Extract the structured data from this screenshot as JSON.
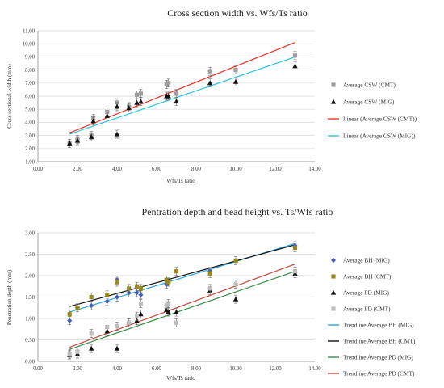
{
  "chart_data": [
    {
      "type": "scatter",
      "title": "Cross section width vs. Wfs/Ts ratio",
      "xlabel": "Wfs/Ts ratio",
      "ylabel": "Cross sectional width (mm)",
      "xlim": [
        0,
        14
      ],
      "ylim": [
        1,
        11
      ],
      "xticks": [
        "0.00",
        "2.00",
        "4.00",
        "6.00",
        "8.00",
        "10.00",
        "12.00",
        "14.00"
      ],
      "yticks": [
        "1.00",
        "2.00",
        "3.00",
        "4.00",
        "5.00",
        "6.00",
        "7.00",
        "8.00",
        "9.00",
        "10.00",
        "11.00"
      ],
      "grid": "horizontal",
      "legend_position": "right",
      "series": [
        {
          "name": "Average CSW (CMT)",
          "marker": "square",
          "color": "#9e9e9e",
          "x": [
            1.6,
            2.0,
            2.7,
            2.8,
            3.5,
            4.0,
            4.6,
            5.0,
            5.2,
            6.5,
            6.6,
            7.0,
            8.7,
            10.0,
            13.0
          ],
          "y": [
            2.4,
            2.7,
            3.0,
            4.3,
            4.8,
            5.5,
            5.2,
            6.1,
            6.2,
            6.9,
            7.0,
            6.2,
            7.9,
            8.0,
            9.1
          ]
        },
        {
          "name": "Average CSW (MIG)",
          "marker": "triangle",
          "color": "#111111",
          "x": [
            1.6,
            2.0,
            2.7,
            2.8,
            3.5,
            4.0,
            4.0,
            4.6,
            5.0,
            5.2,
            6.5,
            6.6,
            7.0,
            8.7,
            10.0,
            13.0
          ],
          "y": [
            2.4,
            2.6,
            2.9,
            4.1,
            4.5,
            3.1,
            5.2,
            5.1,
            5.5,
            5.6,
            6.0,
            6.0,
            5.6,
            7.0,
            7.1,
            8.3
          ]
        },
        {
          "name": "Linear (Average CSW (CMT))",
          "type": "line",
          "color": "#e8322e",
          "x": [
            1.6,
            13.0
          ],
          "y": [
            3.2,
            10.1
          ]
        },
        {
          "name": "Linear (Average CSW (MIG))",
          "type": "line",
          "color": "#2ec4dc",
          "x": [
            1.6,
            13.0
          ],
          "y": [
            3.1,
            9.0
          ]
        }
      ]
    },
    {
      "type": "scatter",
      "title": "Pentration depth and bead height vs. Ts/Wfs ratio",
      "xlabel": "Wfs/Ts ratio",
      "ylabel": "Penetration depth (mm)",
      "xlim": [
        0,
        14
      ],
      "ylim": [
        0,
        3
      ],
      "xticks": [
        "0.00",
        "2.00",
        "4.00",
        "6.00",
        "8.00",
        "10.00",
        "12.00",
        "14.00"
      ],
      "yticks": [
        "0.00",
        "0.50",
        "1.00",
        "1.50",
        "2.00",
        "2.50",
        "3.00"
      ],
      "grid": "horizontal",
      "legend_position": "right",
      "series": [
        {
          "name": "Average BH (MIG)",
          "marker": "diamond",
          "color": "#4a5db8",
          "x": [
            1.6,
            2.0,
            2.7,
            3.5,
            4.0,
            4.0,
            4.6,
            5.0,
            5.2,
            6.5,
            6.6,
            8.7,
            13.0
          ],
          "y": [
            0.95,
            1.25,
            1.3,
            1.4,
            1.5,
            1.9,
            1.6,
            1.6,
            1.55,
            1.8,
            1.85,
            2.1,
            2.7
          ]
        },
        {
          "name": "Average BH (CMT)",
          "marker": "square",
          "color": "#9a8a1c",
          "x": [
            1.6,
            2.0,
            2.7,
            3.5,
            4.0,
            4.6,
            5.0,
            5.2,
            6.5,
            6.6,
            7.0,
            8.7,
            10.0,
            13.0
          ],
          "y": [
            1.1,
            1.25,
            1.5,
            1.55,
            1.85,
            1.7,
            1.75,
            1.7,
            1.9,
            1.85,
            2.1,
            2.05,
            2.35,
            2.65
          ]
        },
        {
          "name": "Average PD (MIG)",
          "marker": "triangle",
          "color": "#111111",
          "x": [
            1.6,
            2.0,
            2.7,
            3.5,
            4.0,
            4.6,
            5.0,
            5.2,
            6.5,
            6.6,
            7.0,
            8.7,
            10.0,
            13.0
          ],
          "y": [
            0.15,
            0.17,
            0.3,
            0.7,
            0.3,
            0.9,
            0.95,
            1.1,
            1.2,
            1.15,
            1.15,
            1.65,
            1.45,
            2.05
          ]
        },
        {
          "name": "Average PD (CMT)",
          "marker": "square",
          "color": "#bdbdbd",
          "x": [
            1.6,
            2.0,
            2.7,
            3.5,
            4.0,
            4.6,
            5.0,
            5.2,
            6.5,
            6.6,
            7.0,
            8.7,
            10.0,
            13.0
          ],
          "y": [
            0.17,
            0.22,
            0.65,
            0.8,
            0.82,
            0.9,
            1.05,
            1.35,
            1.3,
            1.35,
            0.9,
            1.7,
            1.8,
            2.1
          ]
        },
        {
          "name": "Trendline Average BH (MIG)",
          "type": "line",
          "color": "#2ba3d6",
          "x": [
            1.6,
            13.0
          ],
          "y": [
            1.15,
            2.75
          ]
        },
        {
          "name": "Trendline Average BH (CMT)",
          "type": "line",
          "color": "#111111",
          "x": [
            1.6,
            13.0
          ],
          "y": [
            1.28,
            2.72
          ]
        },
        {
          "name": "Trendline Average PD (MIG)",
          "type": "line",
          "color": "#3a8a4a",
          "x": [
            1.6,
            13.0
          ],
          "y": [
            0.28,
            2.1
          ]
        },
        {
          "name": "Trendline Average PD (CMT)",
          "type": "line",
          "color": "#c0463a",
          "x": [
            1.6,
            13.0
          ],
          "y": [
            0.33,
            2.27
          ]
        }
      ]
    }
  ]
}
